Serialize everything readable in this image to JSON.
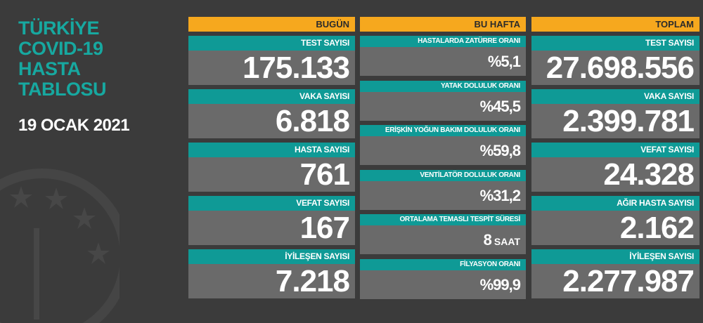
{
  "title": {
    "lines": [
      "TÜRKİYE",
      "COVID-19",
      "HASTA",
      "TABLOSU"
    ],
    "date": "19 OCAK 2021"
  },
  "columns": [
    {
      "header": "BUGÜN",
      "items": [
        {
          "label": "TEST SAYISI",
          "value": "175.133"
        },
        {
          "label": "VAKA SAYISI",
          "value": "6.818"
        },
        {
          "label": "HASTA SAYISI",
          "value": "761"
        },
        {
          "label": "VEFAT SAYISI",
          "value": "167"
        },
        {
          "label": "İYİLEŞEN SAYISI",
          "value": "7.218"
        }
      ]
    },
    {
      "header": "BU HAFTA",
      "items": [
        {
          "label": "HASTALARDA ZATÜRRE ORANI",
          "value": "%5,1"
        },
        {
          "label": "YATAK DOLULUK ORANI",
          "value": "%45,5"
        },
        {
          "label": "ERİŞKİN YOĞUN BAKIM DOLULUK ORANI",
          "value": "%59,8"
        },
        {
          "label": "VENTİLATÖR DOLULUK ORANI",
          "value": "%31,2"
        },
        {
          "label": "ORTALAMA TEMASLI TESPİT SÜRESİ",
          "value": "8",
          "unit": "SAAT"
        },
        {
          "label": "FİLYASYON ORANI",
          "value": "%99,9"
        }
      ]
    },
    {
      "header": "TOPLAM",
      "items": [
        {
          "label": "TEST SAYISI",
          "value": "27.698.556"
        },
        {
          "label": "VAKA SAYISI",
          "value": "2.399.781"
        },
        {
          "label": "VEFAT SAYISI",
          "value": "24.328"
        },
        {
          "label": "AĞIR HASTA SAYISI",
          "value": "2.162"
        },
        {
          "label": "İYİLEŞEN SAYISI",
          "value": "2.277.987"
        }
      ]
    }
  ]
}
